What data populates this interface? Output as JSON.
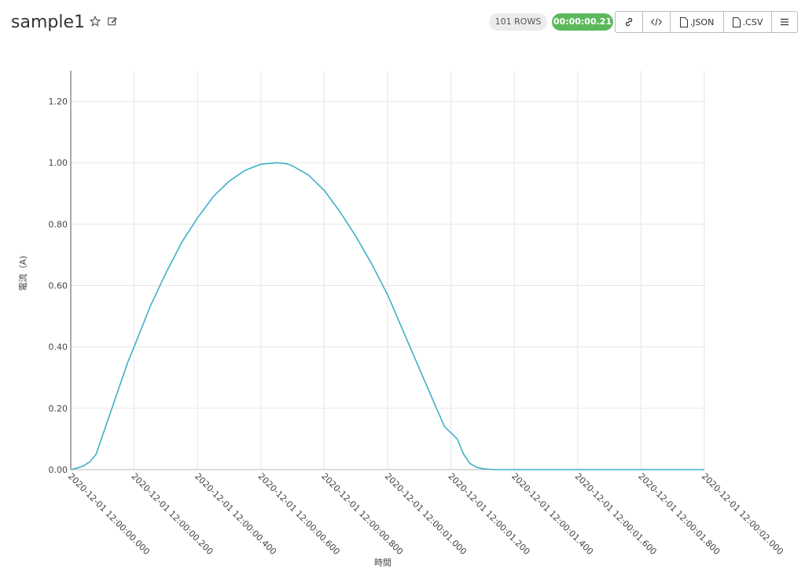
{
  "header": {
    "title": "sample1",
    "rows_badge": "101 ROWS",
    "time_badge": "00:00:00.21",
    "toolbar": {
      "json_label": ".JSON",
      "csv_label": ".CSV"
    }
  },
  "colors": {
    "line": "#3fb0c9",
    "badge_green": "#5cb85c",
    "grid": "#e6e6e6"
  },
  "chart_data": {
    "type": "line",
    "xlabel": "時間",
    "ylabel": "電流（A)",
    "ylim": [
      0,
      1.3
    ],
    "yticks": [
      "0.00",
      "0.20",
      "0.40",
      "0.60",
      "0.80",
      "1.00",
      "1.20"
    ],
    "xticks": [
      "2020-12-01 12:00:00.000",
      "2020-12-01 12:00:00.200",
      "2020-12-01 12:00:00.400",
      "2020-12-01 12:00:00.600",
      "2020-12-01 12:00:00.800",
      "2020-12-01 12:00:01.000",
      "2020-12-01 12:00:01.200",
      "2020-12-01 12:00:01.400",
      "2020-12-01 12:00:01.600",
      "2020-12-01 12:00:01.800",
      "2020-12-01 12:00:02.000"
    ],
    "grid": true,
    "series": [
      {
        "x": [
          0.0,
          0.02,
          0.04,
          0.06,
          0.08,
          0.1,
          0.12,
          0.14,
          0.16,
          0.18,
          0.2,
          0.25,
          0.3,
          0.35,
          0.4,
          0.45,
          0.5,
          0.55,
          0.6,
          0.65,
          0.68,
          0.7,
          0.75,
          0.8,
          0.85,
          0.9,
          0.95,
          1.0,
          1.05,
          1.1,
          1.15,
          1.18,
          1.2,
          1.22,
          1.24,
          1.26,
          1.28,
          1.3,
          1.32,
          1.34,
          1.36,
          1.38,
          1.4,
          1.6,
          1.8,
          2.0
        ],
        "y": [
          0.0,
          0.005,
          0.012,
          0.025,
          0.05,
          0.11,
          0.17,
          0.23,
          0.29,
          0.35,
          0.4,
          0.53,
          0.64,
          0.74,
          0.82,
          0.89,
          0.94,
          0.975,
          0.995,
          1.0,
          0.997,
          0.99,
          0.96,
          0.91,
          0.84,
          0.76,
          0.67,
          0.57,
          0.45,
          0.33,
          0.21,
          0.14,
          0.12,
          0.1,
          0.05,
          0.02,
          0.008,
          0.003,
          0.001,
          0.0,
          0.0,
          0.0,
          0.0,
          0.0,
          0.0,
          0.0
        ]
      }
    ]
  }
}
